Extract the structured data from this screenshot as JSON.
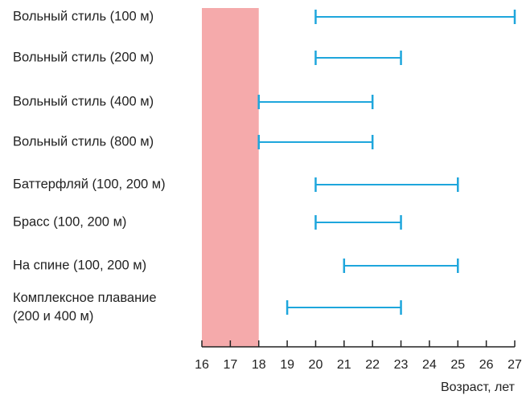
{
  "chart_data": {
    "type": "range",
    "categories": [
      "Вольный стиль (100 м)",
      "Вольный стиль (200 м)",
      "Вольный стиль (400 м)",
      "Вольный стиль (800 м)",
      "Баттерфляй (100, 200 м)",
      "Брасс (100, 200 м)",
      "На спине (100, 200 м)",
      "Комплексное плавание\n(200 и 400 м)"
    ],
    "low": [
      20,
      20,
      18,
      18,
      20,
      20,
      21,
      19
    ],
    "high": [
      27,
      23,
      22,
      22,
      25,
      23,
      25,
      23
    ],
    "color": "#1ea6dc",
    "band": [
      16,
      18
    ],
    "band_color": "#f5aaab",
    "xlim": [
      16,
      27
    ],
    "xticks": [
      16,
      17,
      18,
      19,
      20,
      21,
      22,
      23,
      24,
      25,
      26,
      27
    ],
    "xlabel": "Возраст, лет"
  }
}
